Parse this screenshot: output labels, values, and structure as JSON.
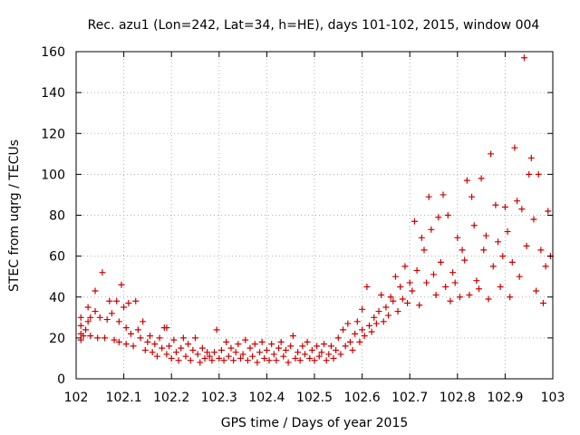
{
  "chart_data": {
    "type": "scatter",
    "title": "Rec. azu1 (Lon=242, Lat=34, h=HE), days 101-102, 2015, window 004",
    "xlabel": "GPS time / Days of year 2015",
    "ylabel": "STEC from uqrg / TECUs",
    "xlim": [
      102,
      103
    ],
    "ylim": [
      0,
      160
    ],
    "xticks": [
      102,
      102.1,
      102.2,
      102.3,
      102.4,
      102.5,
      102.6,
      102.7,
      102.8,
      102.9,
      103
    ],
    "xtick_labels": [
      "102",
      "102.1",
      "102.2",
      "102.3",
      "102.4",
      "102.5",
      "102.6",
      "102.7",
      "102.8",
      "102.9",
      "103"
    ],
    "yticks": [
      0,
      20,
      40,
      60,
      80,
      100,
      120,
      140,
      160
    ],
    "ytick_labels": [
      "0",
      "20",
      "40",
      "60",
      "80",
      "100",
      "120",
      "140",
      "160"
    ],
    "grid": true,
    "marker": "plus",
    "color": "#cc0000",
    "series": [
      {
        "points": [
          [
            102.01,
            19
          ],
          [
            102.01,
            22
          ],
          [
            102.01,
            26
          ],
          [
            102.01,
            30
          ],
          [
            102.015,
            21
          ],
          [
            102.02,
            24
          ],
          [
            102.025,
            28
          ],
          [
            102.025,
            35
          ],
          [
            102.03,
            30
          ],
          [
            102.03,
            21
          ],
          [
            102.04,
            43
          ],
          [
            102.04,
            33
          ],
          [
            102.045,
            20
          ],
          [
            102.05,
            30
          ],
          [
            102.055,
            52
          ],
          [
            102.06,
            20
          ],
          [
            102.065,
            29
          ],
          [
            102.07,
            38
          ],
          [
            102.075,
            32
          ],
          [
            102.08,
            19
          ],
          [
            102.085,
            38
          ],
          [
            102.09,
            28
          ],
          [
            102.09,
            18
          ],
          [
            102.095,
            46
          ],
          [
            102.1,
            35
          ],
          [
            102.105,
            25
          ],
          [
            102.105,
            17
          ],
          [
            102.11,
            37
          ],
          [
            102.115,
            22
          ],
          [
            102.12,
            16
          ],
          [
            102.125,
            38
          ],
          [
            102.13,
            24
          ],
          [
            102.135,
            20
          ],
          [
            102.14,
            28
          ],
          [
            102.145,
            14
          ],
          [
            102.15,
            18
          ],
          [
            102.155,
            21
          ],
          [
            102.16,
            13
          ],
          [
            102.165,
            17
          ],
          [
            102.17,
            11
          ],
          [
            102.175,
            20
          ],
          [
            102.18,
            15
          ],
          [
            102.185,
            25
          ],
          [
            102.19,
            25
          ],
          [
            102.19,
            12
          ],
          [
            102.195,
            16
          ],
          [
            102.2,
            10
          ],
          [
            102.205,
            19
          ],
          [
            102.21,
            13
          ],
          [
            102.215,
            9
          ],
          [
            102.22,
            15
          ],
          [
            102.225,
            20
          ],
          [
            102.23,
            11
          ],
          [
            102.235,
            17
          ],
          [
            102.24,
            9
          ],
          [
            102.245,
            14
          ],
          [
            102.25,
            20
          ],
          [
            102.255,
            12
          ],
          [
            102.26,
            8
          ],
          [
            102.265,
            15
          ],
          [
            102.27,
            10
          ],
          [
            102.275,
            13
          ],
          [
            102.28,
            11
          ],
          [
            102.285,
            9
          ],
          [
            102.29,
            13
          ],
          [
            102.295,
            24
          ],
          [
            102.3,
            10
          ],
          [
            102.305,
            14
          ],
          [
            102.31,
            9
          ],
          [
            102.315,
            18
          ],
          [
            102.32,
            11
          ],
          [
            102.325,
            15
          ],
          [
            102.33,
            9
          ],
          [
            102.335,
            13
          ],
          [
            102.34,
            17
          ],
          [
            102.345,
            10
          ],
          [
            102.35,
            12
          ],
          [
            102.355,
            19
          ],
          [
            102.36,
            9
          ],
          [
            102.365,
            15
          ],
          [
            102.37,
            11
          ],
          [
            102.375,
            17
          ],
          [
            102.38,
            8
          ],
          [
            102.385,
            13
          ],
          [
            102.39,
            18
          ],
          [
            102.395,
            10
          ],
          [
            102.4,
            14
          ],
          [
            102.405,
            9
          ],
          [
            102.41,
            17
          ],
          [
            102.415,
            12
          ],
          [
            102.42,
            9
          ],
          [
            102.425,
            15
          ],
          [
            102.43,
            18
          ],
          [
            102.435,
            11
          ],
          [
            102.44,
            14
          ],
          [
            102.445,
            8
          ],
          [
            102.45,
            16
          ],
          [
            102.455,
            21
          ],
          [
            102.46,
            10
          ],
          [
            102.465,
            13
          ],
          [
            102.47,
            9
          ],
          [
            102.475,
            16
          ],
          [
            102.48,
            12
          ],
          [
            102.485,
            18
          ],
          [
            102.49,
            10
          ],
          [
            102.495,
            14
          ],
          [
            102.5,
            9
          ],
          [
            102.505,
            16
          ],
          [
            102.51,
            11
          ],
          [
            102.515,
            13
          ],
          [
            102.52,
            17
          ],
          [
            102.525,
            9
          ],
          [
            102.53,
            12
          ],
          [
            102.535,
            16
          ],
          [
            102.54,
            10
          ],
          [
            102.545,
            14
          ],
          [
            102.55,
            20
          ],
          [
            102.555,
            12
          ],
          [
            102.56,
            24
          ],
          [
            102.565,
            16
          ],
          [
            102.57,
            27
          ],
          [
            102.575,
            18
          ],
          [
            102.58,
            14
          ],
          [
            102.585,
            22
          ],
          [
            102.59,
            28
          ],
          [
            102.595,
            18
          ],
          [
            102.6,
            34
          ],
          [
            102.6,
            24
          ],
          [
            102.605,
            21
          ],
          [
            102.61,
            45
          ],
          [
            102.615,
            26
          ],
          [
            102.62,
            23
          ],
          [
            102.625,
            30
          ],
          [
            102.63,
            27
          ],
          [
            102.635,
            33
          ],
          [
            102.64,
            41
          ],
          [
            102.645,
            28
          ],
          [
            102.65,
            35
          ],
          [
            102.655,
            31
          ],
          [
            102.66,
            40
          ],
          [
            102.665,
            38
          ],
          [
            102.67,
            50
          ],
          [
            102.675,
            33
          ],
          [
            102.68,
            45
          ],
          [
            102.685,
            39
          ],
          [
            102.69,
            55
          ],
          [
            102.695,
            37
          ],
          [
            102.7,
            47
          ],
          [
            102.705,
            43
          ],
          [
            102.71,
            77
          ],
          [
            102.715,
            53
          ],
          [
            102.72,
            36
          ],
          [
            102.725,
            69
          ],
          [
            102.73,
            63
          ],
          [
            102.735,
            47
          ],
          [
            102.74,
            89
          ],
          [
            102.745,
            73
          ],
          [
            102.75,
            51
          ],
          [
            102.755,
            41
          ],
          [
            102.76,
            79
          ],
          [
            102.765,
            57
          ],
          [
            102.77,
            90
          ],
          [
            102.775,
            45
          ],
          [
            102.78,
            80
          ],
          [
            102.785,
            38
          ],
          [
            102.79,
            52
          ],
          [
            102.795,
            47
          ],
          [
            102.8,
            69
          ],
          [
            102.805,
            40
          ],
          [
            102.81,
            63
          ],
          [
            102.815,
            58
          ],
          [
            102.82,
            97
          ],
          [
            102.825,
            41
          ],
          [
            102.83,
            89
          ],
          [
            102.835,
            75
          ],
          [
            102.84,
            48
          ],
          [
            102.845,
            44
          ],
          [
            102.85,
            98
          ],
          [
            102.855,
            63
          ],
          [
            102.86,
            70
          ],
          [
            102.865,
            39
          ],
          [
            102.87,
            110
          ],
          [
            102.875,
            55
          ],
          [
            102.88,
            85
          ],
          [
            102.885,
            67
          ],
          [
            102.89,
            45
          ],
          [
            102.895,
            60
          ],
          [
            102.9,
            84
          ],
          [
            102.905,
            72
          ],
          [
            102.91,
            40
          ],
          [
            102.915,
            57
          ],
          [
            102.92,
            113
          ],
          [
            102.925,
            87
          ],
          [
            102.93,
            50
          ],
          [
            102.935,
            83
          ],
          [
            102.94,
            157
          ],
          [
            102.945,
            65
          ],
          [
            102.95,
            100
          ],
          [
            102.955,
            108
          ],
          [
            102.96,
            78
          ],
          [
            102.965,
            43
          ],
          [
            102.97,
            100
          ],
          [
            102.975,
            63
          ],
          [
            102.98,
            37
          ],
          [
            102.985,
            55
          ],
          [
            102.99,
            82
          ],
          [
            102.995,
            60
          ]
        ]
      }
    ]
  }
}
